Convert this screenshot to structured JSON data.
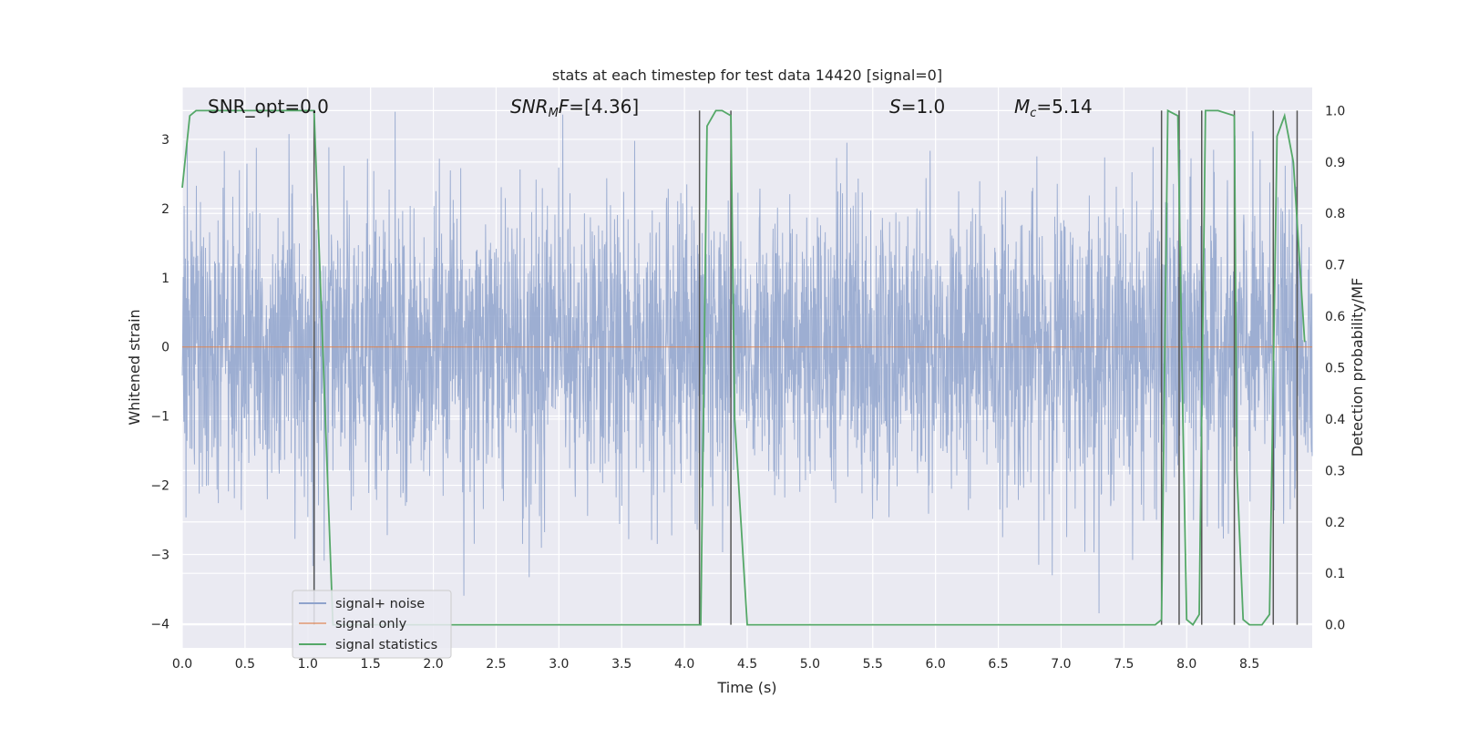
{
  "chart_data": {
    "type": "line",
    "title": "stats at each timestep for test data 14420 [signal=0]",
    "xlabel": "Time (s)",
    "ylabel": "Whitened strain",
    "ylabel_right": "Detection probability/MF",
    "xlim": [
      0.0,
      9.0
    ],
    "ylim": [
      -4.35,
      3.75
    ],
    "ylim_right": [
      -0.045,
      1.045
    ],
    "x_ticks": [
      "0.0",
      "0.5",
      "1.0",
      "1.5",
      "2.0",
      "2.5",
      "3.0",
      "3.5",
      "4.0",
      "4.5",
      "5.0",
      "5.5",
      "6.0",
      "6.5",
      "7.0",
      "7.5",
      "8.0",
      "8.5"
    ],
    "y_ticks": [
      "3",
      "2",
      "1",
      "0",
      "−1",
      "−2",
      "−3",
      "−4"
    ],
    "y_right_ticks": [
      "1.0",
      "0.9",
      "0.8",
      "0.7",
      "0.6",
      "0.5",
      "0.4",
      "0.3",
      "0.2",
      "0.1",
      "0.0"
    ],
    "grid": true,
    "legend_position": "lower-left",
    "annotations": {
      "snr_opt": "SNR_opt=0.0",
      "snr_mf": {
        "a": "SNR",
        "b": "M",
        "c": "F",
        "d": "=[4.36]"
      },
      "s": {
        "a": "S",
        "b": "=1.0"
      },
      "mc": {
        "a": "M",
        "b": "c",
        "c": "=5.14"
      }
    },
    "series": [
      {
        "name": "signal+ noise",
        "color": "#8fa3cc",
        "style": "dense whitened noise trace, roughly Gaussian, sigma about 1, peaks near ±3.4",
        "x_range": [
          0.0,
          9.0
        ],
        "extremes": {
          "max": 3.4,
          "min": -3.85
        }
      },
      {
        "name": "signal only",
        "color": "#dd8452",
        "x": [
          0.0,
          9.0
        ],
        "y": [
          0.0,
          0.0
        ]
      },
      {
        "name": "signal statistics",
        "color": "#55a868",
        "axis": "right",
        "x": [
          0.0,
          0.06,
          0.11,
          0.2,
          1.0,
          1.05,
          1.2,
          1.3,
          4.1,
          4.13,
          4.18,
          4.25,
          4.3,
          4.37,
          4.4,
          4.5,
          7.5,
          7.75,
          7.8,
          7.85,
          7.93,
          7.97,
          8.0,
          8.05,
          8.1,
          8.15,
          8.25,
          8.38,
          8.4,
          8.45,
          8.5,
          8.6,
          8.66,
          8.72,
          8.78,
          8.85,
          8.94
        ],
        "y": [
          0.85,
          0.99,
          1.0,
          1.0,
          1.0,
          1.0,
          0.0,
          0.0,
          0.0,
          0.0,
          0.97,
          1.0,
          1.0,
          0.99,
          0.4,
          0.0,
          0.0,
          0.0,
          0.01,
          1.0,
          0.99,
          0.4,
          0.01,
          0.0,
          0.02,
          1.0,
          1.0,
          0.99,
          0.3,
          0.01,
          0.0,
          0.0,
          0.02,
          0.95,
          0.99,
          0.9,
          0.55
        ]
      },
      {
        "name": "detection markers",
        "color": "#555555",
        "axis": "right",
        "style": "vertical lines from 0 to 1",
        "x": [
          1.05,
          4.12,
          4.37,
          7.8,
          7.94,
          8.12,
          8.38,
          8.69,
          8.88
        ]
      }
    ],
    "legend": [
      {
        "label": "signal+ noise",
        "color": "#8fa3cc"
      },
      {
        "label": "signal only",
        "color": "#dd8452"
      },
      {
        "label": "signal statistics",
        "color": "#55a868"
      }
    ]
  }
}
